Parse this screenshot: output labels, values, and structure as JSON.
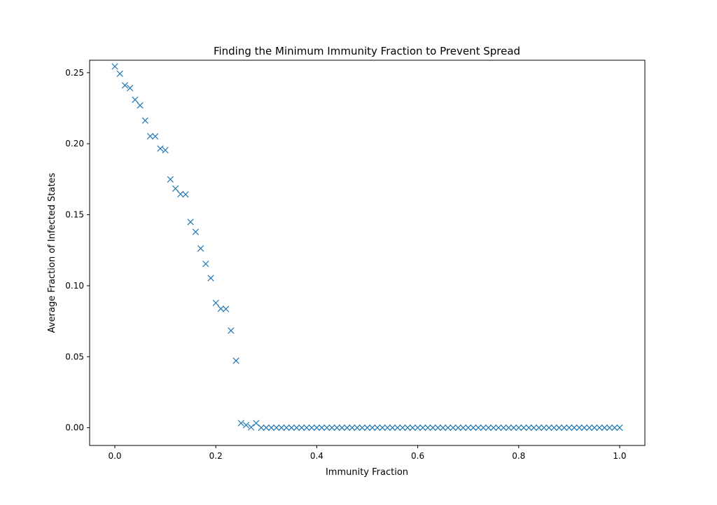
{
  "chart_data": {
    "type": "scatter",
    "title": "Finding the Minimum Immunity Fraction to Prevent Spread",
    "xlabel": "Immunity Fraction",
    "ylabel": "Average Fraction of Infected States",
    "xlim": [
      -0.05,
      1.05
    ],
    "ylim": [
      -0.0125,
      0.2588
    ],
    "xticks": [
      {
        "value": 0.0,
        "label": "0.0"
      },
      {
        "value": 0.2,
        "label": "0.2"
      },
      {
        "value": 0.4,
        "label": "0.4"
      },
      {
        "value": 0.6,
        "label": "0.6"
      },
      {
        "value": 0.8,
        "label": "0.8"
      },
      {
        "value": 1.0,
        "label": "1.0"
      }
    ],
    "yticks": [
      {
        "value": 0.0,
        "label": "0.00"
      },
      {
        "value": 0.05,
        "label": "0.05"
      },
      {
        "value": 0.1,
        "label": "0.10"
      },
      {
        "value": 0.15,
        "label": "0.15"
      },
      {
        "value": 0.2,
        "label": "0.20"
      },
      {
        "value": 0.25,
        "label": "0.25"
      }
    ],
    "marker": "x",
    "grid": false,
    "color": "#1f77b4",
    "x": [
      0.0,
      0.01,
      0.02,
      0.03,
      0.04,
      0.05,
      0.06,
      0.07,
      0.08,
      0.09,
      0.1,
      0.11,
      0.12,
      0.13,
      0.14,
      0.15,
      0.16,
      0.17,
      0.18,
      0.19,
      0.2,
      0.21,
      0.22,
      0.23,
      0.24,
      0.25,
      0.26,
      0.27,
      0.28,
      0.29,
      0.3,
      0.31,
      0.32,
      0.33,
      0.34,
      0.35,
      0.36,
      0.37,
      0.38,
      0.39,
      0.4,
      0.41,
      0.42,
      0.43,
      0.44,
      0.45,
      0.46,
      0.47,
      0.48,
      0.49,
      0.5,
      0.51,
      0.52,
      0.53,
      0.54,
      0.55,
      0.56,
      0.57,
      0.58,
      0.59,
      0.6,
      0.61,
      0.62,
      0.63,
      0.64,
      0.65,
      0.66,
      0.67,
      0.68,
      0.69,
      0.7,
      0.71,
      0.72,
      0.73,
      0.74,
      0.75,
      0.76,
      0.77,
      0.78,
      0.79,
      0.8,
      0.81,
      0.82,
      0.83,
      0.84,
      0.85,
      0.86,
      0.87,
      0.88,
      0.89,
      0.9,
      0.91,
      0.92,
      0.93,
      0.94,
      0.95,
      0.96,
      0.97,
      0.98,
      0.99,
      1.0
    ],
    "y": [
      0.2544,
      0.2493,
      0.2411,
      0.2392,
      0.231,
      0.227,
      0.2163,
      0.2053,
      0.2052,
      0.1966,
      0.1955,
      0.1749,
      0.1684,
      0.1645,
      0.1643,
      0.1449,
      0.1379,
      0.1263,
      0.1154,
      0.1054,
      0.0879,
      0.0838,
      0.0836,
      0.0684,
      0.0472,
      0.0032,
      0.0018,
      0.0003,
      0.0032,
      0,
      0,
      0,
      0,
      0,
      0,
      0,
      0,
      0,
      0,
      0,
      0,
      0,
      0,
      0,
      0,
      0,
      0,
      0,
      0,
      0,
      0,
      0,
      0,
      0,
      0,
      0,
      0,
      0,
      0,
      0,
      0,
      0,
      0,
      0,
      0,
      0,
      0,
      0,
      0,
      0,
      0,
      0,
      0,
      0,
      0,
      0,
      0,
      0,
      0,
      0,
      0,
      0,
      0,
      0,
      0,
      0,
      0,
      0,
      0,
      0,
      0,
      0,
      0,
      0,
      0,
      0,
      0,
      0,
      0,
      0,
      0
    ]
  }
}
